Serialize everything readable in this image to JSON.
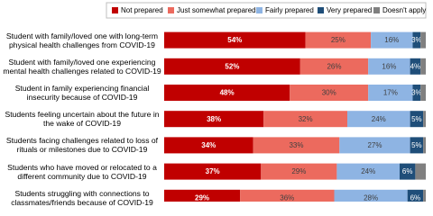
{
  "chart_data": {
    "type": "stacked-bar-horizontal",
    "categories": [
      "Student with family/loved one with long-term physical health challenges from COVID-19",
      "Student with family/loved one experiencing mental health challenges related to COVID-19",
      "Student in family experiencing financial insecurity because of COVID-19",
      "Students feeling uncertain about the future in the wake of COVID-19",
      "Students facing challenges related to loss of rituals or milestones due to COVID-19",
      "Students who have moved or relocated to a different community due to COVID-19",
      "Students struggling with connections to classmates/friends because of COVID-19"
    ],
    "xlim": [
      0,
      100
    ],
    "legend": "top",
    "series": [
      {
        "name": "Not prepared",
        "color": "#c00000",
        "values": [
          54,
          52,
          48,
          38,
          34,
          37,
          29
        ],
        "value_labels": [
          "54%",
          "52%",
          "48%",
          "38%",
          "34%",
          "37%",
          "29%"
        ]
      },
      {
        "name": "Just somewhat prepared",
        "color": "#ec6a5e",
        "values": [
          25,
          26,
          30,
          32,
          33,
          29,
          36
        ],
        "value_labels": [
          "25%",
          "26%",
          "30%",
          "32%",
          "33%",
          "29%",
          "36%"
        ]
      },
      {
        "name": "Fairly prepared",
        "color": "#8eb4e3",
        "values": [
          16,
          16,
          17,
          24,
          27,
          24,
          28
        ],
        "value_labels": [
          "16%",
          "16%",
          "17%",
          "24%",
          "27%",
          "24%",
          "28%"
        ]
      },
      {
        "name": "Very prepared",
        "color": "#1f4e79",
        "values": [
          3,
          4,
          3,
          5,
          5,
          6,
          6
        ],
        "value_labels": [
          "3%",
          "4%",
          "3%",
          "5%",
          "5%",
          "6%",
          "6%"
        ]
      },
      {
        "name": "Doesn't apply",
        "color": "#808080",
        "values": [
          2,
          2,
          2,
          1,
          1,
          4,
          1
        ]
      }
    ]
  }
}
